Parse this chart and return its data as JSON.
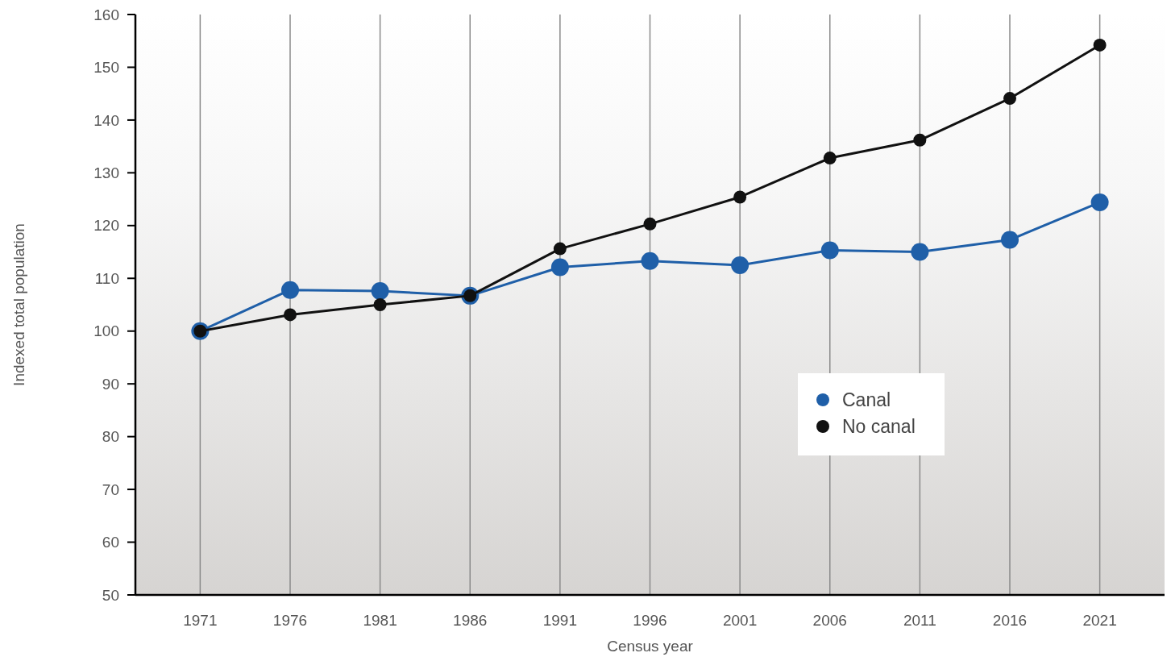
{
  "chart_data": {
    "type": "line",
    "xlabel": "Census year",
    "ylabel": "Indexed total population",
    "categories": [
      "1971",
      "1976",
      "1981",
      "1986",
      "1991",
      "1996",
      "2001",
      "2006",
      "2011",
      "2016",
      "2021"
    ],
    "series": [
      {
        "name": "Canal",
        "color": "#1f5fa8",
        "values": [
          100,
          107.8,
          107.6,
          106.7,
          112.1,
          113.3,
          112.5,
          115.3,
          115,
          117.3,
          124.4
        ]
      },
      {
        "name": "No canal",
        "color": "#111111",
        "values": [
          100,
          103.1,
          105,
          106.7,
          115.6,
          120.3,
          125.4,
          132.8,
          136.2,
          144.1,
          154.2
        ]
      }
    ],
    "ylim": [
      50,
      160
    ],
    "yticks": [
      50,
      60,
      70,
      80,
      90,
      100,
      110,
      120,
      130,
      140,
      150,
      160
    ],
    "grid": "x",
    "legend": "right",
    "marker": "circle",
    "line_style": "solid"
  }
}
